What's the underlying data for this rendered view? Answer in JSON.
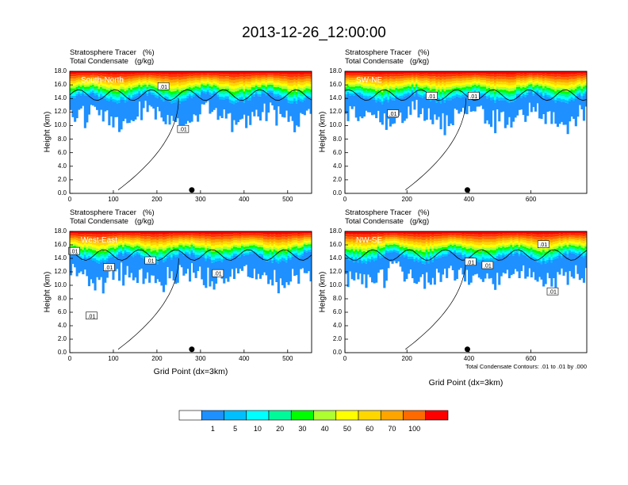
{
  "title": "2013-12-26_12:00:00",
  "chart_data": [
    {
      "type": "heatmap",
      "panel": "South-North",
      "header": [
        "Stratosphere Tracer   (%)",
        "Total Condensate   (g/kg)"
      ],
      "ylabel": "Height (km)",
      "xlabel": "",
      "xlim": [
        0,
        555
      ],
      "ylim": [
        0,
        18
      ],
      "xticks": [
        0,
        100,
        200,
        300,
        400,
        500
      ],
      "yticks": [
        "0.0",
        "2.0",
        "4.0",
        "6.0",
        "8.0",
        "10.0",
        "12.0",
        "14.0",
        "16.0",
        "18.0"
      ],
      "marker_x": 280,
      "contour_labels": [
        {
          "text": ".01",
          "x": 215,
          "y": 15.8
        },
        {
          "text": ".01",
          "x": 260,
          "y": 9.5
        }
      ]
    },
    {
      "type": "heatmap",
      "panel": "SW-NE",
      "header": [
        "Stratosphere Tracer   (%)",
        "Total Condensate   (g/kg)"
      ],
      "ylabel": "Height (km)",
      "xlabel": "",
      "xlim": [
        0,
        780
      ],
      "ylim": [
        0,
        18
      ],
      "xticks": [
        0,
        200,
        400,
        600
      ],
      "yticks": [
        "0.0",
        "2.0",
        "4.0",
        "6.0",
        "8.0",
        "10.0",
        "12.0",
        "14.0",
        "16.0",
        "18.0"
      ],
      "marker_x": 395,
      "contour_labels": [
        {
          "text": ".01",
          "x": 155,
          "y": 11.8
        },
        {
          "text": ".01",
          "x": 280,
          "y": 14.4
        },
        {
          "text": ".01",
          "x": 415,
          "y": 14.4
        }
      ]
    },
    {
      "type": "heatmap",
      "panel": "West-East",
      "header": [
        "Stratosphere Tracer   (%)",
        "Total Condensate   (g/kg)"
      ],
      "ylabel": "Height (km)",
      "xlabel": "Grid Point (dx=3km)",
      "xlim": [
        0,
        555
      ],
      "ylim": [
        0,
        18
      ],
      "xticks": [
        0,
        100,
        200,
        300,
        400,
        500
      ],
      "yticks": [
        "0.0",
        "2.0",
        "4.0",
        "6.0",
        "8.0",
        "10.0",
        "12.0",
        "14.0",
        "16.0",
        "18.0"
      ],
      "marker_x": 280,
      "contour_labels": [
        {
          "text": ".01",
          "x": 10,
          "y": 15.1
        },
        {
          "text": ".01",
          "x": 90,
          "y": 12.7
        },
        {
          "text": ".01",
          "x": 185,
          "y": 13.7
        },
        {
          "text": ".01",
          "x": 340,
          "y": 11.8
        },
        {
          "text": ".01",
          "x": 50,
          "y": 5.5
        }
      ]
    },
    {
      "type": "heatmap",
      "panel": "NW-SE",
      "header": [
        "Stratosphere Tracer   (%)",
        "Total Condensate   (g/kg)"
      ],
      "ylabel": "Height (km)",
      "xlabel": "Grid Point (dx=3km)",
      "xlim": [
        0,
        780
      ],
      "ylim": [
        0,
        18
      ],
      "xticks": [
        0,
        200,
        400,
        600
      ],
      "yticks": [
        "0.0",
        "2.0",
        "4.0",
        "6.0",
        "8.0",
        "10.0",
        "12.0",
        "14.0",
        "16.0",
        "18.0"
      ],
      "marker_x": 395,
      "contour_labels": [
        {
          "text": ".01",
          "x": 640,
          "y": 16.1
        },
        {
          "text": ".01",
          "x": 405,
          "y": 13.5
        },
        {
          "text": ".01",
          "x": 460,
          "y": 13.0
        },
        {
          "text": ".01",
          "x": 670,
          "y": 9.1
        }
      ],
      "footnote": "Total Condensate Contours: .01 to .01 by .000"
    }
  ],
  "colorbar": {
    "colors": [
      "#ffffff",
      "#1e90ff",
      "#00bfff",
      "#00ffff",
      "#00fa9a",
      "#00ff00",
      "#adff2f",
      "#ffff00",
      "#ffd700",
      "#ffa500",
      "#ff6a00",
      "#ff0000"
    ],
    "labels": [
      "1",
      "5",
      "10",
      "20",
      "30",
      "40",
      "50",
      "60",
      "70",
      "100"
    ]
  }
}
